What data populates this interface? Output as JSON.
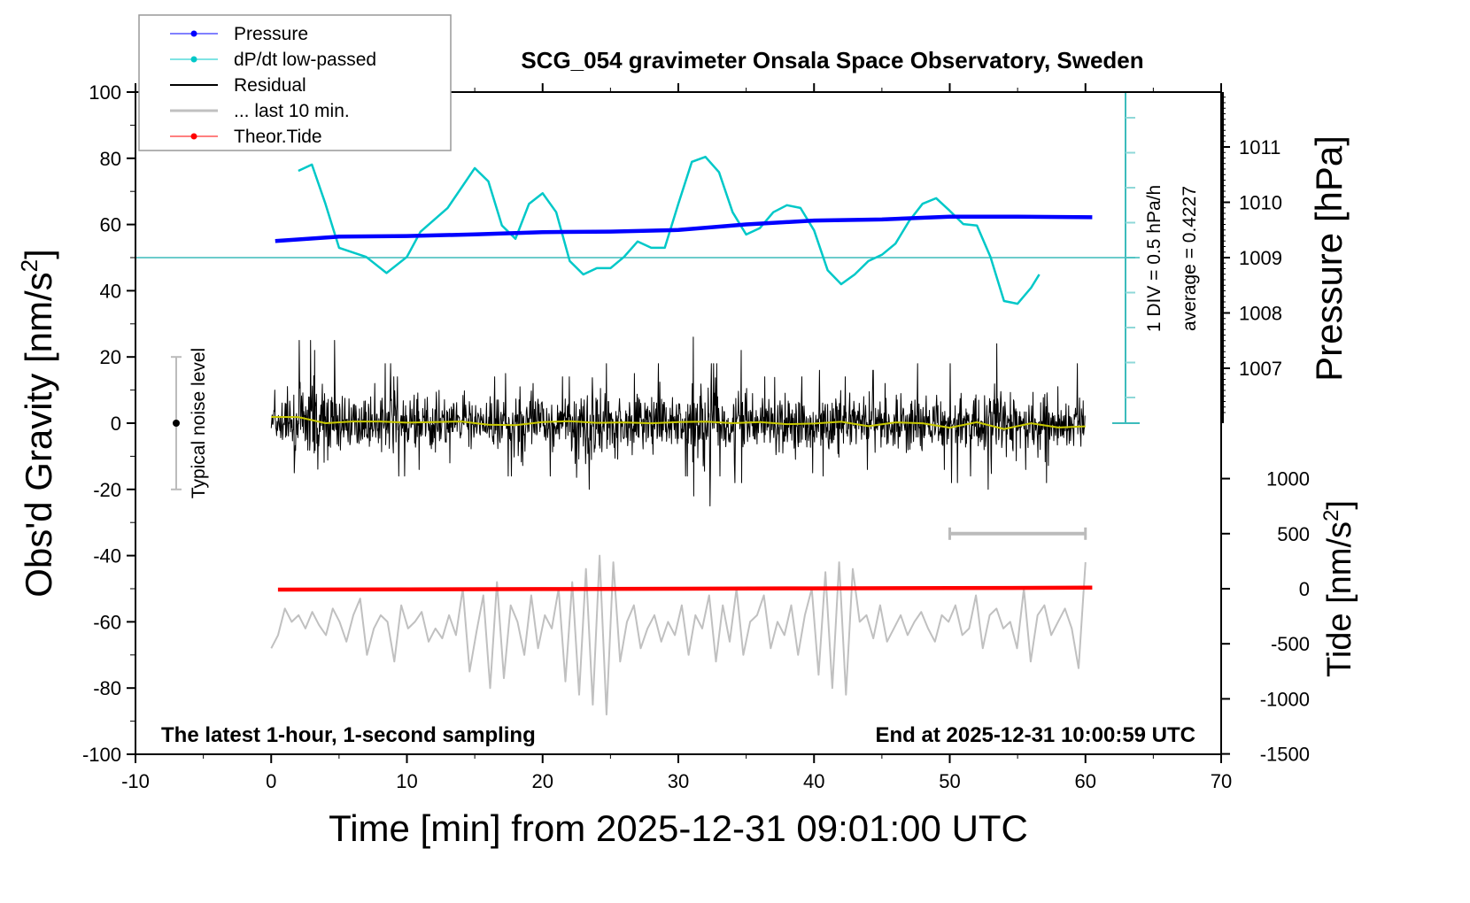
{
  "chart_data": {
    "type": "line",
    "title": "SCG_054 gravimeter Onsala Space Observatory, Sweden",
    "xlabel": "Time [min] from 2025-12-31 09:01:00 UTC",
    "ylabel_left": "Obs'd Gravity [nm/s",
    "ylabel_left_sup": "2",
    "ylabel_left_end": "]",
    "ylabel_right_top": "Pressure [hPa]",
    "ylabel_right_bottom": "Tide [nm/s",
    "ylabel_right_bottom_sup": "2",
    "ylabel_right_bottom_end": "]",
    "xlim": [
      -10,
      70
    ],
    "ylim_left": [
      -100,
      100
    ],
    "pressure_lim": [
      1006,
      1012
    ],
    "tide_lim": [
      -1500,
      1500
    ],
    "x_ticks": [
      "-10",
      "0",
      "10",
      "20",
      "30",
      "40",
      "50",
      "60",
      "70"
    ],
    "y_left_ticks": [
      "100",
      "80",
      "60",
      "40",
      "20",
      "0",
      "-20",
      "-40",
      "-60",
      "-80",
      "-100"
    ],
    "pressure_ticks": [
      "1011",
      "1010",
      "1009",
      "1008",
      "1007"
    ],
    "tide_ticks": [
      "1000",
      "500",
      "0",
      "-500",
      "-1000",
      "-1500"
    ],
    "annotation_bottom_left": "The latest 1-hour, 1-second sampling",
    "annotation_bottom_right": "End at 2025-12-31 10:00:59 UTC",
    "dpdt_scale_label": "1 DIV = 0.5 hPa/h",
    "dpdt_average_label": "average = 0.4227",
    "noise_label": "Typical noise level",
    "noise_level": [
      -20,
      20
    ],
    "last10_bar_tide_value": 500,
    "last10_bar_time": [
      50,
      60
    ],
    "legend": {
      "placement": "top-left",
      "items": [
        {
          "label": "Pressure",
          "color": "#0000ff",
          "marker": true
        },
        {
          "label": "dP/dt low-passed",
          "color": "#00c8c8",
          "marker": true
        },
        {
          "label": "Residual",
          "color": "#000000",
          "marker": false
        },
        {
          "label": "... last 10 min.",
          "color": "#c0c0c0",
          "marker": false
        },
        {
          "label": "Theor.Tide",
          "color": "#ff0000",
          "marker": true
        }
      ]
    },
    "series": [
      {
        "name": "Pressure",
        "unit": "hPa",
        "color": "#0000ff",
        "x": [
          0.3,
          5,
          10,
          15,
          20,
          25,
          30,
          35,
          40,
          45,
          50,
          55,
          60.5
        ],
        "y": [
          1009.3,
          1009.38,
          1009.39,
          1009.42,
          1009.46,
          1009.47,
          1009.5,
          1009.6,
          1009.67,
          1009.69,
          1009.74,
          1009.74,
          1009.73
        ]
      },
      {
        "name": "dP/dt low-passed",
        "unit": "hPa/h",
        "color": "#00c8c8",
        "x": [
          2,
          3,
          4,
          5,
          7,
          8.5,
          10,
          11,
          13,
          15,
          16,
          17,
          18,
          19,
          20,
          21,
          22,
          23,
          24,
          25,
          26,
          27,
          28,
          29,
          30,
          31,
          32,
          33,
          34,
          35,
          36,
          37,
          38,
          39,
          40,
          41,
          42,
          43,
          44,
          45,
          46,
          47,
          48,
          49,
          50,
          51,
          52,
          53,
          54,
          55,
          56,
          56.6
        ],
        "y": [
          1.24,
          1.33,
          0.77,
          0.14,
          0.01,
          -0.22,
          0.01,
          0.37,
          0.71,
          1.28,
          1.09,
          0.46,
          0.27,
          0.77,
          0.92,
          0.65,
          -0.05,
          -0.24,
          -0.15,
          -0.15,
          0.01,
          0.23,
          0.14,
          0.14,
          0.77,
          1.37,
          1.44,
          1.22,
          0.65,
          0.33,
          0.42,
          0.65,
          0.75,
          0.71,
          0.39,
          -0.18,
          -0.38,
          -0.24,
          -0.05,
          0.04,
          0.2,
          0.52,
          0.77,
          0.85,
          0.67,
          0.48,
          0.46,
          0.01,
          -0.62,
          -0.66,
          -0.43,
          -0.24
        ]
      },
      {
        "name": "Residual",
        "unit": "nm/s2",
        "color": "#000000",
        "per_minute_max": [
          10,
          18,
          25,
          22,
          25,
          14,
          15,
          12,
          18,
          14,
          15,
          12,
          14,
          12,
          16,
          10,
          14,
          15,
          26,
          12,
          14,
          14,
          22,
          25,
          18,
          18,
          15,
          14,
          18,
          12,
          18,
          26,
          18,
          12,
          22,
          16,
          14,
          20,
          18,
          14,
          16,
          18,
          14,
          12,
          16,
          12,
          22,
          18,
          14,
          20,
          18,
          14,
          16,
          24,
          18,
          14,
          18,
          20,
          15,
          18
        ],
        "per_minute_min": [
          -10,
          -15,
          -18,
          -22,
          -18,
          -14,
          -16,
          -15,
          -14,
          -16,
          -14,
          -12,
          -15,
          -12,
          -14,
          -14,
          -15,
          -16,
          -22,
          -18,
          -16,
          -14,
          -28,
          -20,
          -18,
          -16,
          -14,
          -16,
          -18,
          -15,
          -16,
          -22,
          -25,
          -16,
          -18,
          -15,
          -16,
          -20,
          -18,
          -15,
          -16,
          -18,
          -16,
          -14,
          -18,
          -14,
          -15,
          -20,
          -16,
          -14,
          -18,
          -16,
          -20,
          -30,
          -18,
          -14,
          -16,
          -18,
          -16,
          -14
        ]
      },
      {
        "name": "Residual smoothed",
        "unit": "nm/s2",
        "color": "#c8c800",
        "x": [
          0,
          2,
          4,
          6,
          8,
          10,
          12,
          14,
          16,
          18,
          20,
          22,
          24,
          26,
          28,
          30,
          32,
          34,
          36,
          38,
          40,
          42,
          44,
          46,
          48,
          50,
          52,
          54,
          56,
          58,
          60
        ],
        "y": [
          1.5,
          1.5,
          0.5,
          0.5,
          0.8,
          0.5,
          0.2,
          0.5,
          0.3,
          -0.5,
          0.3,
          0,
          -0.3,
          0.2,
          -0.2,
          0,
          -0.5,
          0.5,
          -0.3,
          -0.5,
          -0.5,
          -0.2,
          -0.3,
          -0.2,
          -0.5,
          -0.8,
          -0.5,
          -1.2,
          -0.8,
          -0.5,
          0
        ]
      },
      {
        "name": "... last 10 min.",
        "unit": "nm/s2",
        "color": "#c0c0c0",
        "x_range": [
          0,
          60
        ],
        "y": [
          -68,
          -64,
          -56,
          -60,
          -58,
          -62,
          -57,
          -61,
          -64,
          -56,
          -60,
          -66,
          -58,
          -53,
          -70,
          -62,
          -58,
          -60,
          -72,
          -55,
          -62,
          -60,
          -57,
          -66,
          -62,
          -65,
          -58,
          -64,
          -50,
          -75,
          -63,
          -52,
          -80,
          -48,
          -77,
          -55,
          -60,
          -70,
          -52,
          -68,
          -58,
          -62,
          -50,
          -78,
          -48,
          -82,
          -44,
          -85,
          -40,
          -88,
          -42,
          -72,
          -60,
          -55,
          -68,
          -62,
          -58,
          -66,
          -60,
          -64,
          -55,
          -70,
          -58,
          -62,
          -52,
          -72,
          -55,
          -66,
          -50,
          -70,
          -60,
          -58,
          -52,
          -68,
          -60,
          -64,
          -55,
          -70,
          -58,
          -50,
          -76,
          -45,
          -80,
          -42,
          -82,
          -44,
          -60,
          -58,
          -65,
          -55,
          -66,
          -62,
          -58,
          -64,
          -60,
          -57,
          -62,
          -66,
          -58,
          -60,
          -55,
          -64,
          -62,
          -52,
          -68,
          -58,
          -56,
          -62,
          -60,
          -68,
          -50,
          -72,
          -58,
          -55,
          -64,
          -60,
          -56,
          -62,
          -74,
          -42
        ]
      },
      {
        "name": "Theor.Tide",
        "unit": "nm/s2",
        "color": "#ff0000",
        "x": [
          0.5,
          10,
          20,
          30,
          40,
          50,
          60.5
        ],
        "y": [
          -8,
          -6,
          -3,
          0,
          3,
          6,
          10
        ]
      }
    ]
  }
}
